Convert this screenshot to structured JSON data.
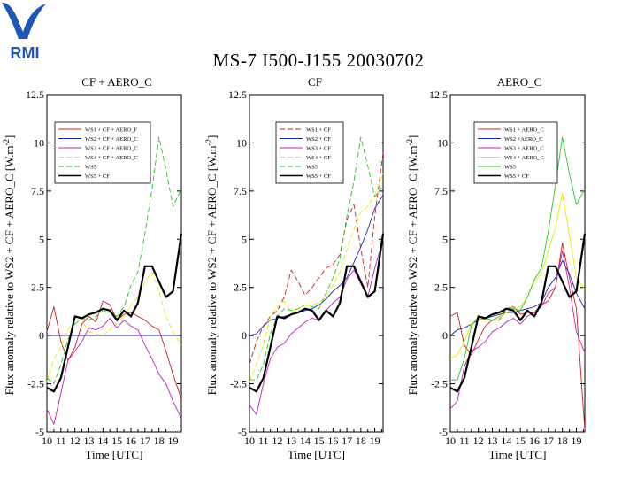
{
  "logo": {
    "text": "RMI",
    "color": "#1e57b5"
  },
  "title": "MS-7 I500-J155 20030702",
  "chart_data": [
    {
      "type": "line",
      "title": "CF + AERO_C",
      "xlabel": "Time [UTC]",
      "ylabel": "Flux anomaly relative to WS2 + CF + AERO_C [W.m",
      "ylabel_sup": "-2",
      "ylabel_end": "]",
      "xlim": [
        10,
        19.6
      ],
      "ylim": [
        -5,
        12.5
      ],
      "xticks": [
        10,
        11,
        12,
        13,
        14,
        15,
        16,
        17,
        18,
        19
      ],
      "yticks": [
        -5,
        -2.5,
        0,
        2.5,
        5,
        7.5,
        10,
        12.5
      ],
      "ytick_labels": [
        "-5",
        "-2.5",
        "0",
        "2.5",
        "5",
        "7.5",
        "10",
        "12.5"
      ],
      "x": [
        10,
        10.5,
        11,
        11.5,
        12,
        12.5,
        13,
        13.5,
        14,
        14.5,
        15,
        15.5,
        16,
        16.5,
        17,
        17.5,
        18,
        18.5,
        19,
        19.6
      ],
      "series": [
        {
          "name": "WS1 + CF + AERO_F",
          "color": "#cc2020",
          "width": 0.9,
          "dash": "",
          "values": [
            0.2,
            1.5,
            -0.3,
            -1.3,
            -0.6,
            0.6,
            1.0,
            0.7,
            1.8,
            1.6,
            0.8,
            1.1,
            1.2,
            1.0,
            0.8,
            0.5,
            0.3,
            -0.8,
            -2.0,
            -3.3
          ]
        },
        {
          "name": "WS2 + CF + AERO_C",
          "color": "#2020b0",
          "width": 0.9,
          "dash": "",
          "values": [
            0,
            0,
            0,
            0,
            0,
            0,
            0,
            0,
            0,
            0,
            0,
            0,
            0,
            0,
            0,
            0,
            0,
            0,
            0,
            0
          ]
        },
        {
          "name": "WS3 + CF + AERO_C",
          "color": "#c020c0",
          "width": 0.9,
          "dash": "",
          "values": [
            -3.8,
            -4.6,
            -3.0,
            -1.3,
            -0.8,
            -0.3,
            0.4,
            0.3,
            0.5,
            0.9,
            0.4,
            0.8,
            0.5,
            0.3,
            -0.5,
            -1.2,
            -2.0,
            -2.5,
            -3.4,
            -4.3
          ]
        },
        {
          "name": "WS4 + CF + AERO_C",
          "color": "#e8e800",
          "width": 0.9,
          "dash": "6,3",
          "values": [
            -2.4,
            -1.2,
            -0.6,
            0.3,
            0.8,
            0.8,
            0.2,
            0.1,
            0.0,
            0.3,
            0.7,
            1.0,
            1.6,
            2.0,
            2.8,
            3.3,
            2.3,
            1.0,
            0.2,
            -0.5
          ]
        },
        {
          "name": "WS5",
          "color": "#22cc22",
          "width": 0.9,
          "dash": "6,3",
          "values": [
            -2.2,
            -2.5,
            -1.5,
            -0.2,
            0.6,
            0.9,
            0.8,
            1.0,
            1.3,
            1.2,
            1.0,
            1.5,
            2.6,
            3.3,
            5.3,
            7.6,
            10.3,
            8.6,
            6.7,
            7.6
          ]
        },
        {
          "name": "WS5 + CF",
          "color": "#000000",
          "width": 2.2,
          "dash": "",
          "values": [
            -2.7,
            -2.9,
            -2.2,
            -0.6,
            1.0,
            0.9,
            1.1,
            1.2,
            1.4,
            1.3,
            0.8,
            1.3,
            1.0,
            1.7,
            3.6,
            3.6,
            2.8,
            2.0,
            2.3,
            5.3
          ]
        }
      ]
    },
    {
      "type": "line",
      "title": "CF",
      "xlabel": "Time [UTC]",
      "ylabel": "Flux anomaly relative to WS2 + CF + AERO_C [W.m",
      "ylabel_sup": "-2",
      "ylabel_end": "]",
      "xlim": [
        10,
        19.6
      ],
      "ylim": [
        -5,
        12.5
      ],
      "xticks": [
        10,
        11,
        12,
        13,
        14,
        15,
        16,
        17,
        18,
        19
      ],
      "yticks": [
        -5,
        -2.5,
        0,
        2.5,
        5,
        7.5,
        10,
        12.5
      ],
      "ytick_labels": [
        "-5",
        "-2.5",
        "0",
        "2.5",
        "5",
        "7.5",
        "10",
        "12.5"
      ],
      "x": [
        10,
        10.5,
        11,
        11.5,
        12,
        12.5,
        13,
        13.5,
        14,
        14.5,
        15,
        15.5,
        16,
        16.5,
        17,
        17.5,
        18,
        18.5,
        19,
        19.6
      ],
      "series": [
        {
          "name": "WS1 + CF",
          "color": "#cc2020",
          "width": 0.9,
          "dash": "6,3",
          "values": [
            -1.5,
            -0.3,
            0.5,
            1.0,
            1.3,
            2.0,
            3.4,
            2.8,
            2.1,
            2.5,
            3.0,
            3.5,
            3.7,
            4.2,
            6.0,
            6.8,
            4.5,
            2.5,
            6.2,
            9.5
          ]
        },
        {
          "name": "WS2 + CF",
          "color": "#2020b0",
          "width": 0.9,
          "dash": "",
          "values": [
            0.0,
            0.1,
            0.5,
            0.8,
            0.9,
            1.0,
            1.1,
            1.2,
            1.3,
            1.4,
            1.6,
            1.9,
            2.3,
            2.6,
            3.0,
            3.8,
            4.6,
            5.5,
            6.6,
            7.3
          ]
        },
        {
          "name": "WS3 + CF",
          "color": "#c020c0",
          "width": 0.9,
          "dash": "",
          "values": [
            -3.6,
            -4.1,
            -2.5,
            -1.2,
            -0.6,
            -0.4,
            0.1,
            0.4,
            0.7,
            0.9,
            0.8,
            1.3,
            1.7,
            2.0,
            2.9,
            3.4,
            2.7,
            2.0,
            3.5,
            5.0
          ]
        },
        {
          "name": "WS4 + CF",
          "color": "#e8e800",
          "width": 0.9,
          "dash": "6,3",
          "values": [
            -2.4,
            -1.5,
            -0.5,
            1.0,
            1.5,
            1.8,
            1.2,
            1.4,
            1.6,
            1.6,
            1.7,
            2.0,
            2.6,
            3.3,
            4.5,
            5.5,
            6.4,
            6.7,
            7.3,
            8.4
          ]
        },
        {
          "name": "WS5",
          "color": "#22cc22",
          "width": 0.9,
          "dash": "6,3",
          "values": [
            -2.3,
            -2.3,
            -1.5,
            0.1,
            1.0,
            1.4,
            1.3,
            1.4,
            1.6,
            1.5,
            1.4,
            2.2,
            3.0,
            4.0,
            6.2,
            8.0,
            10.3,
            8.8,
            7.2,
            7.8
          ]
        },
        {
          "name": "WS5 + CF",
          "color": "#000000",
          "width": 2.2,
          "dash": "",
          "values": [
            -2.7,
            -2.9,
            -2.2,
            -0.6,
            1.0,
            0.9,
            1.1,
            1.2,
            1.4,
            1.3,
            0.8,
            1.3,
            1.0,
            1.7,
            3.6,
            3.6,
            2.8,
            2.0,
            2.3,
            5.3
          ]
        }
      ]
    },
    {
      "type": "line",
      "title": "AERO_C",
      "xlabel": "Time [UTC]",
      "ylabel": "Flux anomaly relative to WS2 + CF + AERO_C [W.m",
      "ylabel_sup": "-2",
      "ylabel_end": "]",
      "xlim": [
        10,
        19.6
      ],
      "ylim": [
        -5,
        12.5
      ],
      "xticks": [
        10,
        11,
        12,
        13,
        14,
        15,
        16,
        17,
        18,
        19
      ],
      "yticks": [
        -5,
        -2.5,
        0,
        2.5,
        5,
        7.5,
        10,
        12.5
      ],
      "ytick_labels": [
        "-5",
        "-2.5",
        "0",
        "2.5",
        "5",
        "7.5",
        "10",
        "12.5"
      ],
      "x": [
        10,
        10.5,
        11,
        11.5,
        12,
        12.5,
        13,
        13.5,
        14,
        14.5,
        15,
        15.5,
        16,
        16.5,
        17,
        17.5,
        18,
        18.5,
        19,
        19.6
      ],
      "series": [
        {
          "name": "WS1 + AERO_C",
          "color": "#cc2020",
          "width": 0.9,
          "dash": "",
          "values": [
            1.0,
            1.2,
            -0.5,
            -1.0,
            -0.2,
            0.5,
            0.8,
            0.8,
            1.4,
            1.5,
            1.1,
            1.2,
            1.2,
            1.6,
            1.8,
            2.5,
            4.8,
            3.0,
            1.4,
            -4.9
          ]
        },
        {
          "name": "WS2 +AERO_C",
          "color": "#2020b0",
          "width": 0.9,
          "dash": "",
          "values": [
            0.0,
            0.3,
            0.4,
            0.6,
            0.8,
            0.9,
            1.0,
            1.1,
            1.2,
            1.2,
            1.3,
            1.4,
            1.5,
            1.7,
            2.5,
            3.0,
            3.9,
            3.2,
            2.2,
            1.4
          ]
        },
        {
          "name": "WS3 + AERO_C",
          "color": "#c020c0",
          "width": 0.9,
          "dash": "",
          "values": [
            -3.8,
            -3.4,
            -1.6,
            -0.8,
            -0.6,
            -0.3,
            0.2,
            0.4,
            0.7,
            0.9,
            0.6,
            1.0,
            1.2,
            1.5,
            2.2,
            2.5,
            4.4,
            2.5,
            0.2,
            -0.9
          ]
        },
        {
          "name": "WS4 + AERO_C",
          "color": "#e8e800",
          "width": 0.9,
          "dash": "",
          "values": [
            -1.2,
            -1.0,
            -0.3,
            0.6,
            0.9,
            0.8,
            0.8,
            0.9,
            1.2,
            1.4,
            1.5,
            2.0,
            2.8,
            3.2,
            4.4,
            5.6,
            7.4,
            5.2,
            3.0,
            2.4
          ]
        },
        {
          "name": "WS5",
          "color": "#22cc22",
          "width": 0.9,
          "dash": "",
          "values": [
            -2.3,
            -2.3,
            -1.2,
            0.5,
            1.0,
            0.9,
            0.8,
            1.0,
            1.4,
            1.4,
            1.3,
            2.0,
            2.9,
            3.5,
            5.4,
            7.8,
            10.3,
            8.4,
            6.8,
            7.6
          ]
        },
        {
          "name": "WS5 + CF",
          "color": "#000000",
          "width": 2.2,
          "dash": "",
          "values": [
            -2.7,
            -2.9,
            -2.2,
            -0.6,
            1.0,
            0.9,
            1.1,
            1.2,
            1.4,
            1.3,
            0.8,
            1.3,
            1.0,
            1.7,
            3.6,
            3.6,
            2.8,
            2.0,
            2.3,
            5.3
          ]
        }
      ]
    }
  ]
}
